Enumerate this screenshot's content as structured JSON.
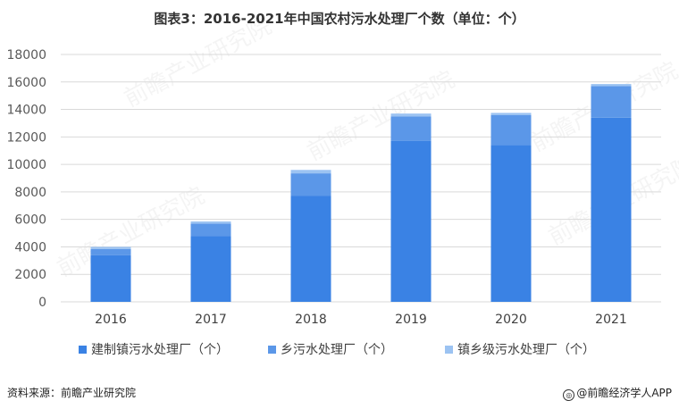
{
  "title": "图表3：2016-2021年中国农村污水处理厂个数（单位：个）",
  "source": "资料来源：前瞻产业研究院",
  "brand": "@前瞻经济学人APP",
  "brand_icon": "circle-logo-icon",
  "watermark": "前瞻产业研究院",
  "colors": {
    "series": [
      "#3a82e4",
      "#5b97e8",
      "#9cc3f2"
    ],
    "grid": "#d9d9d9",
    "axis_text": "#595959"
  },
  "chart_data": {
    "type": "bar",
    "stacked": true,
    "categories": [
      "2016",
      "2017",
      "2018",
      "2019",
      "2020",
      "2021"
    ],
    "series": [
      {
        "name": "建制镇污水处理厂（个）",
        "values": [
          3400,
          4800,
          7700,
          11700,
          11400,
          13400
        ]
      },
      {
        "name": "乡污水处理厂（个）",
        "values": [
          450,
          900,
          1650,
          1800,
          2200,
          2300
        ]
      },
      {
        "name": "镇乡级污水处理厂（个）",
        "values": [
          150,
          150,
          250,
          200,
          150,
          150
        ]
      }
    ],
    "yticks": [
      0,
      2000,
      4000,
      6000,
      8000,
      10000,
      12000,
      14000,
      16000,
      18000
    ],
    "ylim": [
      0,
      18000
    ],
    "grid": true,
    "legend_position": "bottom"
  }
}
